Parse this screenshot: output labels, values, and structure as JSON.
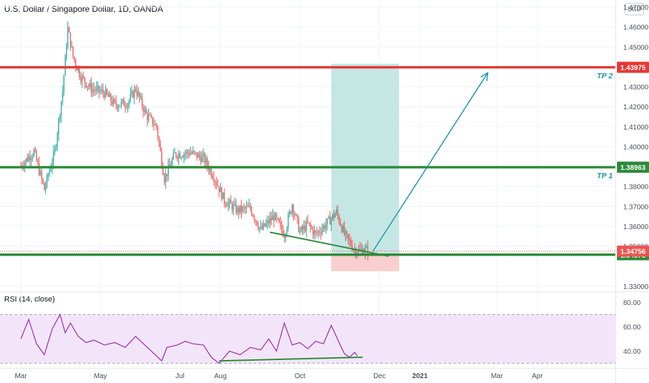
{
  "header": {
    "title": "U.S. Dollar / Singapore Dollar, 1D, OANDA",
    "currency": "SGD"
  },
  "chart_data": {
    "type": "candlestick",
    "price_axis": {
      "ylim": [
        1.3275,
        1.4735
      ],
      "ticks": [
        "1.47000",
        "1.46000",
        "1.45000",
        "1.44000",
        "1.43000",
        "1.42000",
        "1.41000",
        "1.40000",
        "1.39000",
        "1.38000",
        "1.37000",
        "1.36000",
        "1.35000",
        "1.33000"
      ]
    },
    "time_axis": {
      "labels": [
        {
          "text": "Mar",
          "t": 0
        },
        {
          "text": "May",
          "t": 61
        },
        {
          "text": "Jul",
          "t": 122
        },
        {
          "text": "Aug",
          "t": 153
        },
        {
          "text": "Oct",
          "t": 214
        },
        {
          "text": "Dec",
          "t": 275
        },
        {
          "text": "2021",
          "t": 306
        },
        {
          "text": "Mar",
          "t": 365
        },
        {
          "text": "Apr",
          "t": 396
        }
      ],
      "tlim": [
        -16,
        456
      ]
    },
    "candles": {
      "t_start": 0,
      "t_end": 266,
      "path": [
        [
          0,
          1.3905
        ],
        [
          10,
          1.3975
        ],
        [
          18,
          1.3785
        ],
        [
          26,
          1.3975
        ],
        [
          32,
          1.428
        ],
        [
          36,
          1.459
        ],
        [
          40,
          1.445
        ],
        [
          46,
          1.435
        ],
        [
          54,
          1.429
        ],
        [
          64,
          1.427
        ],
        [
          72,
          1.421
        ],
        [
          82,
          1.422
        ],
        [
          88,
          1.429
        ],
        [
          96,
          1.416
        ],
        [
          104,
          1.41
        ],
        [
          110,
          1.384
        ],
        [
          118,
          1.396
        ],
        [
          130,
          1.397
        ],
        [
          140,
          1.394
        ],
        [
          148,
          1.385
        ],
        [
          156,
          1.373
        ],
        [
          166,
          1.368
        ],
        [
          176,
          1.369
        ],
        [
          184,
          1.358
        ],
        [
          194,
          1.365
        ],
        [
          202,
          1.356
        ],
        [
          208,
          1.371
        ],
        [
          214,
          1.357
        ],
        [
          220,
          1.361
        ],
        [
          226,
          1.356
        ],
        [
          234,
          1.361
        ],
        [
          242,
          1.367
        ],
        [
          248,
          1.356
        ],
        [
          256,
          1.348
        ],
        [
          266,
          1.348
        ]
      ],
      "up_color": "#26a69a",
      "down_color": "#ef5350"
    },
    "levels": [
      {
        "name": "TP 2",
        "price": 1.43975,
        "label": "1.43975",
        "color": "#e53935"
      },
      {
        "name": "TP 1",
        "price": 1.38963,
        "label": "1.38963",
        "color": "#2e8b3a"
      },
      {
        "name": "",
        "price": 1.34575,
        "label": "1.34575",
        "color": "#2e8b3a"
      }
    ],
    "current_price": {
      "value": 1.34756,
      "label": "1.34756",
      "color": "#ef5350"
    },
    "position": {
      "t_start": 238,
      "t_end": 290,
      "entry": 1.346,
      "target": 1.4415,
      "stop": 1.3375,
      "profit_color": "#b2dfdb",
      "loss_color": "#f8c6c6"
    },
    "trendline": {
      "from": [
        191,
        1.357
      ],
      "to": [
        282,
        1.345
      ],
      "color": "#2e8b3a"
    },
    "projection_arrow": {
      "from": [
        270,
        1.3475
      ],
      "to": [
        358,
        1.437
      ],
      "color": "#2196a8"
    },
    "rsi": {
      "label": "RSI (14, close)",
      "ylim": [
        27,
        88
      ],
      "ticks": [
        "80.00",
        "60.00",
        "40.00"
      ],
      "upper": 70,
      "lower": 30,
      "values": [
        [
          0,
          50
        ],
        [
          6,
          66
        ],
        [
          12,
          46
        ],
        [
          18,
          37
        ],
        [
          24,
          58
        ],
        [
          30,
          70
        ],
        [
          34,
          55
        ],
        [
          38,
          63
        ],
        [
          44,
          52
        ],
        [
          50,
          47
        ],
        [
          56,
          49
        ],
        [
          64,
          45
        ],
        [
          72,
          47
        ],
        [
          80,
          43
        ],
        [
          88,
          52
        ],
        [
          96,
          44
        ],
        [
          104,
          36
        ],
        [
          108,
          32
        ],
        [
          112,
          43
        ],
        [
          120,
          45
        ],
        [
          126,
          48
        ],
        [
          132,
          46
        ],
        [
          140,
          45
        ],
        [
          146,
          35
        ],
        [
          152,
          30
        ],
        [
          160,
          40
        ],
        [
          168,
          37
        ],
        [
          176,
          43
        ],
        [
          184,
          41
        ],
        [
          190,
          50
        ],
        [
          196,
          40
        ],
        [
          202,
          63
        ],
        [
          208,
          45
        ],
        [
          214,
          47
        ],
        [
          220,
          42
        ],
        [
          226,
          48
        ],
        [
          232,
          46
        ],
        [
          238,
          61
        ],
        [
          244,
          47
        ],
        [
          248,
          38
        ],
        [
          252,
          35
        ],
        [
          256,
          39
        ],
        [
          258,
          36
        ]
      ],
      "trendline": {
        "from": [
          152,
          32
        ],
        "to": [
          262,
          35
        ]
      },
      "line_color": "#9c27b0",
      "band_color": "#f3e5f9"
    }
  }
}
